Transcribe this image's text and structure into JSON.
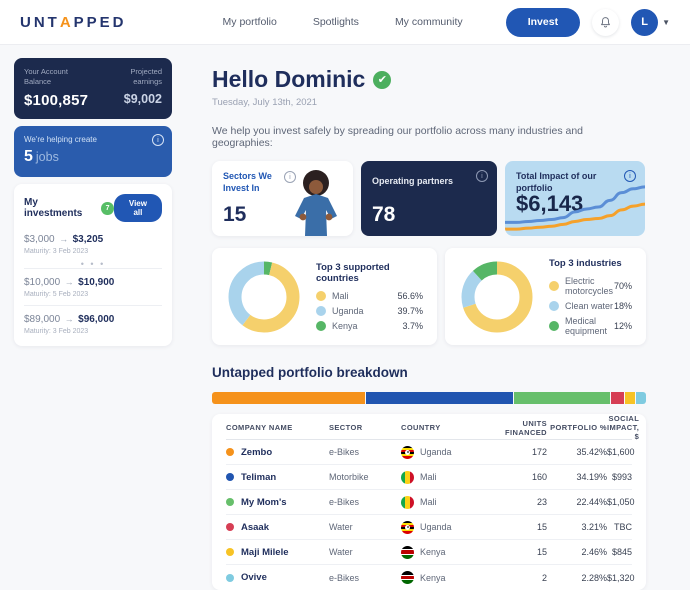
{
  "brand": {
    "logo_pre": "UNT",
    "logo_accent": "A",
    "logo_post": "PPED"
  },
  "nav": {
    "items": [
      {
        "label": "My portfolio"
      },
      {
        "label": "Spotlights"
      },
      {
        "label": "My community"
      }
    ],
    "invest_label": "Invest",
    "avatar_initial": "L"
  },
  "sidebar": {
    "account": {
      "balance_label": "Your Account Balance",
      "balance": "$100,857",
      "earnings_label": "Projected earnings",
      "earnings": "$9,002"
    },
    "jobs": {
      "line1": "We're helping create",
      "count": "5",
      "unit": "jobs"
    },
    "investments": {
      "title": "My investments",
      "badge": "7",
      "view_all": "View all",
      "more": "• • •",
      "items": [
        {
          "from": "$3,000",
          "to": "$3,205",
          "maturity": "Maturity: 3 Feb 2023"
        },
        {
          "from": "$10,000",
          "to": "$10,900",
          "maturity": "Maturity: 5 Feb 2023"
        },
        {
          "from": "$89,000",
          "to": "$96,000",
          "maturity": "Maturity: 3 Feb 2023"
        }
      ]
    }
  },
  "main": {
    "greeting": "Hello Dominic",
    "date": "Tuesday, July 13th, 2021",
    "intro": "We help you invest safely by spreading our portfolio across many industries and geographies:",
    "stats": [
      {
        "label": "Sectors We Invest In",
        "value": "15"
      },
      {
        "label": "Operating partners",
        "value": "78"
      },
      {
        "label": "Total Impact of our portfolio",
        "value": "$6,143"
      }
    ],
    "breakdown_title": "Untapped portfolio breakdown"
  },
  "chart_data": [
    {
      "type": "pie",
      "donut": true,
      "title": "Top 3 supported countries",
      "labels": [
        "Mali",
        "Uganda",
        "Kenya"
      ],
      "values": [
        56.6,
        39.7,
        3.7
      ],
      "value_labels": [
        "56.6%",
        "39.7%",
        "3.7%"
      ],
      "colors": [
        "#F5D06C",
        "#A9D3EC",
        "#56B666"
      ],
      "draw_order": [
        2,
        0,
        1
      ],
      "legend_position": "right"
    },
    {
      "type": "pie",
      "donut": true,
      "title": "Top 3 industries",
      "labels": [
        "Electric motorcycles",
        "Clean water",
        "Medical equipment"
      ],
      "values": [
        70,
        18,
        12
      ],
      "value_labels": [
        "70%",
        "18%",
        "12%"
      ],
      "colors": [
        "#F5D06C",
        "#A9D3EC",
        "#56B666"
      ],
      "draw_order": [
        0,
        1,
        2
      ],
      "legend_position": "right"
    },
    {
      "type": "bar",
      "stacked": true,
      "title": "Untapped portfolio breakdown",
      "categories": [
        "Zembo",
        "Teliman",
        "My Mom's",
        "Asaak",
        "Maji Milele",
        "Ovive"
      ],
      "values": [
        35.42,
        34.19,
        22.44,
        3.21,
        2.46,
        2.28
      ],
      "colors": [
        "#F5921B",
        "#2155B0",
        "#67BF6B",
        "#D63E54",
        "#F7C325",
        "#7FCBE0"
      ],
      "xlim": [
        0,
        100
      ]
    },
    {
      "type": "line",
      "title": "Total Impact of our portfolio (sparkline, unlabeled axes)",
      "x": [
        0,
        1,
        2,
        3,
        4,
        5,
        6,
        7,
        8,
        9,
        10,
        11,
        12
      ],
      "series": [
        {
          "name": "impact-blue",
          "color": "#5B8ED6",
          "values": [
            10,
            10,
            11,
            12,
            13,
            15,
            21,
            24,
            26,
            33,
            41,
            45,
            47
          ]
        },
        {
          "name": "impact-orange",
          "color": "#F5A12B",
          "values": [
            3,
            3,
            4,
            5,
            6,
            8,
            11,
            13,
            14,
            17,
            23,
            27,
            29
          ]
        }
      ]
    }
  ],
  "table": {
    "headers": [
      "COMPANY NAME",
      "SECTOR",
      "COUNTRY",
      "UNITS FINANCED",
      "PORTFOLIO %",
      "SOCIAL IMPACT, $"
    ],
    "rows": [
      {
        "company": "Zembo",
        "dot": "#F5921B",
        "sector": "e-Bikes",
        "country": "Uganda",
        "flag": "uganda",
        "units": "172",
        "portfolio": "35.42%",
        "impact": "$1,600"
      },
      {
        "company": "Teliman",
        "dot": "#2155B0",
        "sector": "Motorbike",
        "country": "Mali",
        "flag": "mali",
        "units": "160",
        "portfolio": "34.19%",
        "impact": "$993"
      },
      {
        "company": "My Mom's",
        "dot": "#67BF6B",
        "sector": "e-Bikes",
        "country": "Mali",
        "flag": "mali",
        "units": "23",
        "portfolio": "22.44%",
        "impact": "$1,050"
      },
      {
        "company": "Asaak",
        "dot": "#D63E54",
        "sector": "Water",
        "country": "Uganda",
        "flag": "uganda",
        "units": "15",
        "portfolio": "3.21%",
        "impact": "TBC"
      },
      {
        "company": "Maji Milele",
        "dot": "#F7C325",
        "sector": "Water",
        "country": "Kenya",
        "flag": "kenya",
        "units": "15",
        "portfolio": "2.46%",
        "impact": "$845"
      },
      {
        "company": "Ovive",
        "dot": "#7FCBE0",
        "sector": "e-Bikes",
        "country": "Kenya",
        "flag": "kenya",
        "units": "2",
        "portfolio": "2.28%",
        "impact": "$1,320"
      }
    ]
  },
  "colors": {
    "brand_blue": "#2157B4",
    "navy": "#1C2A4D",
    "accent_orange": "#F5921B",
    "jobs_blue": "#2A5CAD",
    "impact_bg": "#B9DBF1",
    "badge_green": "#57BE66"
  }
}
